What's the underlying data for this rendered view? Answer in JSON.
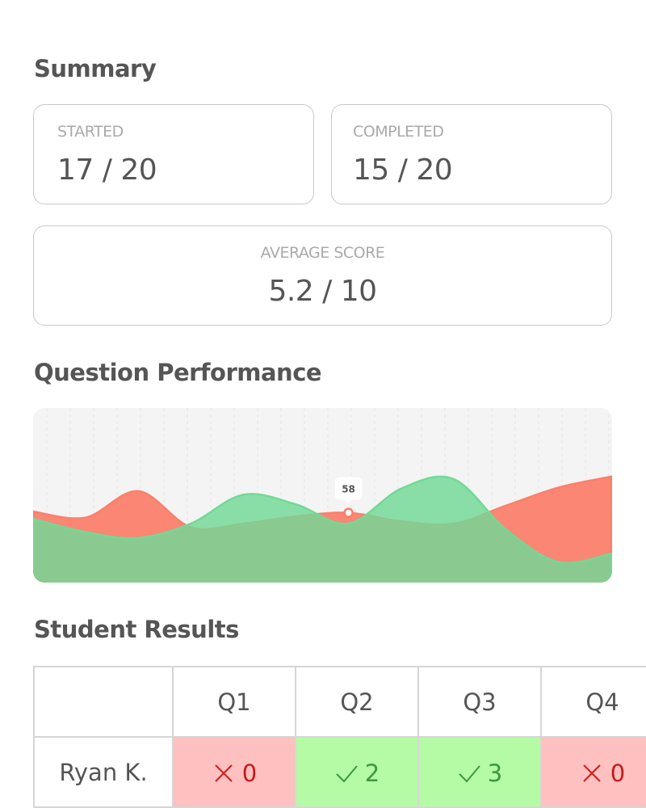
{
  "summary": {
    "title": "Summary",
    "cards": [
      {
        "label": "STARTED",
        "value": "17 / 20"
      },
      {
        "label": "COMPLETED",
        "value": "15 / 20"
      },
      {
        "label": "AVERAGE SCORE",
        "value": "5.2 / 10"
      }
    ]
  },
  "performance": {
    "title": "Question Performance",
    "chart": {
      "type": "area",
      "ylim": [
        0,
        145
      ],
      "highlight_index": 6,
      "series": [
        {
          "color": "#fa806b",
          "values": [
            59,
            54,
            76,
            46,
            49,
            55,
            58,
            51,
            49,
            64,
            79,
            88
          ]
        },
        {
          "color": "#72d996",
          "values": [
            53,
            42,
            37,
            49,
            73,
            65,
            49,
            78,
            86,
            44,
            17,
            24
          ]
        }
      ]
    }
  },
  "results": {
    "title": "Student Results",
    "columns": [
      "Q1",
      "Q2",
      "Q3",
      "Q4"
    ],
    "rows": [
      {
        "name": "Ryan K.",
        "cells": [
          {
            "correct": false,
            "score": 0
          },
          {
            "correct": true,
            "score": 2
          },
          {
            "correct": true,
            "score": 3
          },
          {
            "correct": false,
            "score": 0
          }
        ]
      }
    ]
  }
}
